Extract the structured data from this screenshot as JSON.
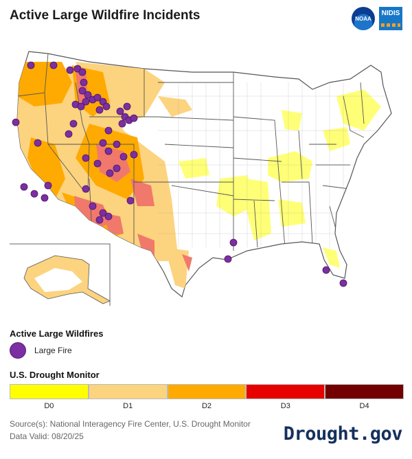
{
  "title": "Active Large Wildfire Incidents",
  "logos": {
    "noaa_text": "NOAA",
    "nidis_text": "NIDIS"
  },
  "legend_fires": {
    "heading": "Active Large Wildfires",
    "item_label": "Large Fire"
  },
  "legend_drought": {
    "heading": "U.S. Drought Monitor",
    "categories": [
      {
        "label": "D0",
        "color": "#ffff00"
      },
      {
        "label": "D1",
        "color": "#fcd37f"
      },
      {
        "label": "D2",
        "color": "#ffaa00"
      },
      {
        "label": "D3",
        "color": "#e60000"
      },
      {
        "label": "D4",
        "color": "#730000"
      }
    ]
  },
  "source_line": "Source(s): National Interagency Fire Center, U.S. Drought Monitor",
  "valid_line": "Data Valid: 08/20/25",
  "brand": "Drought.gov",
  "fire_color": "#7b2fa0"
}
